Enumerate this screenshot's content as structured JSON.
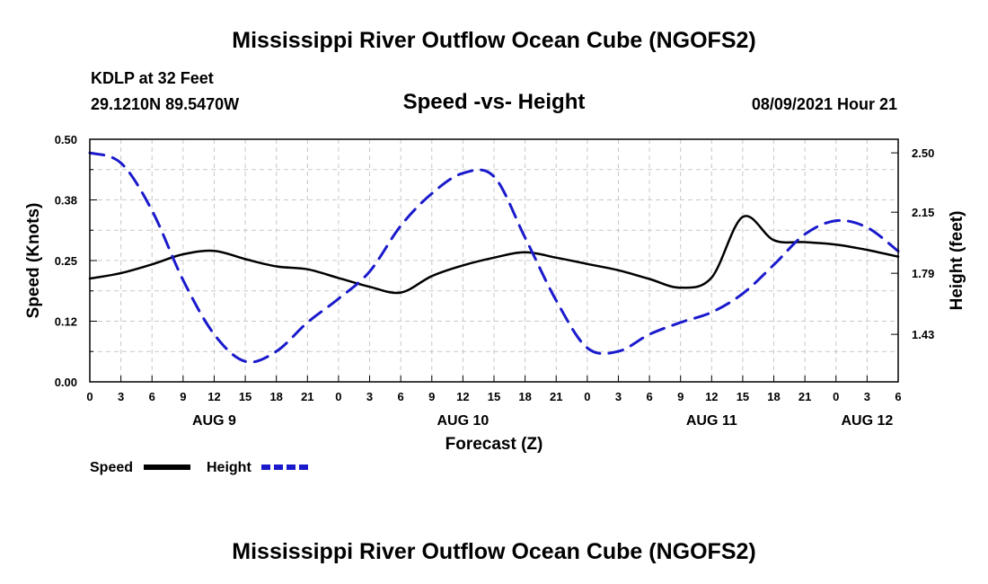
{
  "header": {
    "title": "Mississippi River Outflow Ocean Cube (NGOFS2)",
    "station": "KDLP at 32 Feet",
    "coords": "29.1210N  89.5470W",
    "subtitle": "Speed -vs- Height",
    "datetime": "08/09/2021 Hour 21"
  },
  "footer": {
    "title": "Mississippi River Outflow Ocean Cube (NGOFS2)"
  },
  "colors": {
    "speed": "#000000",
    "height": "#1a1acc",
    "grid": "#c8c8c8"
  },
  "chart_data": {
    "type": "line",
    "xlabel": "Forecast (Z)",
    "ylabel": "Speed (Knots)",
    "y2label": "Height (feet)",
    "x_unit": "forecast hours from AUG 9 00Z",
    "xlim": [
      0,
      78
    ],
    "ylim": [
      0,
      0.5
    ],
    "y2lim": [
      1.15,
      2.58
    ],
    "x_ticks": [
      0,
      3,
      6,
      9,
      12,
      15,
      18,
      21,
      24,
      27,
      30,
      33,
      36,
      39,
      42,
      45,
      48,
      51,
      54,
      57,
      60,
      63,
      66,
      69,
      72,
      75,
      78
    ],
    "x_tick_labels": [
      "0",
      "3",
      "6",
      "9",
      "12",
      "15",
      "18",
      "21",
      "0",
      "3",
      "6",
      "9",
      "12",
      "15",
      "18",
      "21",
      "0",
      "3",
      "6",
      "9",
      "12",
      "15",
      "18",
      "21",
      "0",
      "3",
      "6"
    ],
    "y_ticks": [
      0.0,
      0.125,
      0.25,
      0.375,
      0.5
    ],
    "y_tick_labels": [
      "0.00",
      "0.12",
      "0.25",
      "0.38",
      "0.50"
    ],
    "y2_ticks": [
      1.43,
      1.79,
      2.15,
      2.5
    ],
    "y2_tick_labels": [
      "1.43",
      "1.79",
      "2.15",
      "2.50"
    ],
    "day_labels": [
      {
        "x": 12,
        "label": "AUG 9"
      },
      {
        "x": 36,
        "label": "AUG 10"
      },
      {
        "x": 60,
        "label": "AUG 11"
      },
      {
        "x": 75,
        "label": "AUG 12"
      }
    ],
    "grid": true,
    "legend_position": "bottom-left",
    "series": [
      {
        "name": "Speed",
        "axis": "left",
        "style": "solid",
        "x": [
          0,
          3,
          6,
          9,
          12,
          15,
          18,
          21,
          24,
          27,
          30,
          33,
          36,
          39,
          42,
          45,
          48,
          51,
          54,
          57,
          60,
          63,
          66,
          69,
          72,
          75,
          78
        ],
        "values": [
          0.213,
          0.224,
          0.242,
          0.263,
          0.27,
          0.253,
          0.238,
          0.232,
          0.214,
          0.196,
          0.184,
          0.218,
          0.24,
          0.256,
          0.267,
          0.256,
          0.243,
          0.23,
          0.212,
          0.194,
          0.215,
          0.34,
          0.292,
          0.288,
          0.283,
          0.272,
          0.258
        ]
      },
      {
        "name": "Height",
        "axis": "right",
        "style": "dashed",
        "x": [
          0,
          3,
          6,
          9,
          12,
          15,
          18,
          21,
          24,
          27,
          30,
          33,
          36,
          39,
          42,
          45,
          48,
          51,
          54,
          57,
          60,
          63,
          66,
          69,
          72,
          75,
          78
        ],
        "values": [
          2.5,
          2.44,
          2.16,
          1.75,
          1.43,
          1.27,
          1.33,
          1.5,
          1.64,
          1.8,
          2.07,
          2.26,
          2.38,
          2.36,
          2.0,
          1.63,
          1.35,
          1.33,
          1.43,
          1.5,
          1.56,
          1.67,
          1.84,
          2.02,
          2.1,
          2.06,
          1.92
        ]
      }
    ]
  }
}
